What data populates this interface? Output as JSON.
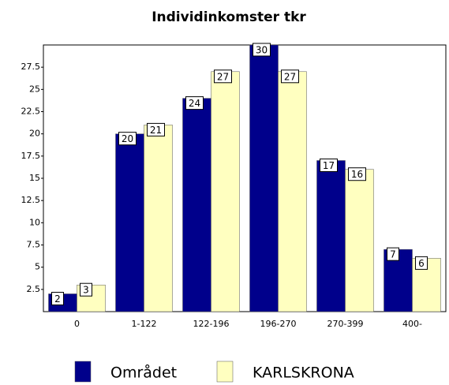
{
  "chart_data": {
    "type": "bar",
    "title": "Individinkomster tkr",
    "categories": [
      "0",
      "1-122",
      "122-196",
      "196-270",
      "270-399",
      "400-"
    ],
    "series": [
      {
        "name": "Området",
        "color": "#00008b",
        "values": [
          2,
          20,
          24,
          30,
          17,
          7
        ]
      },
      {
        "name": "KARLSKRONA",
        "color": "#ffffc0",
        "values": [
          3,
          21,
          27,
          27,
          16,
          6
        ]
      }
    ],
    "ylim": [
      0,
      30
    ],
    "yticks": [
      2.5,
      5,
      7.5,
      10,
      12.5,
      15,
      17.5,
      20,
      22.5,
      25,
      27.5
    ],
    "grid": false,
    "legend": "bottom"
  }
}
